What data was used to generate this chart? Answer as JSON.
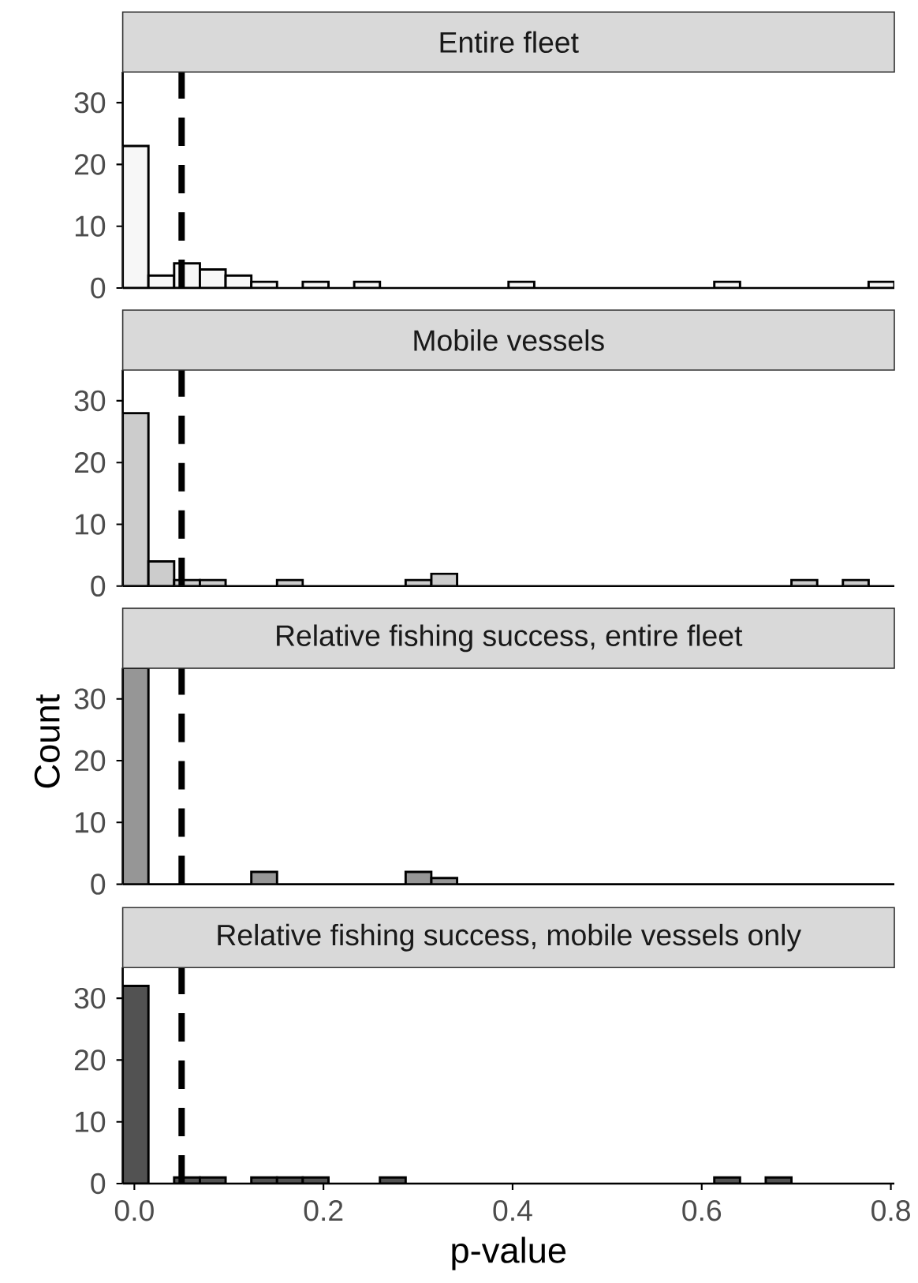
{
  "chart_data": [
    {
      "type": "histogram",
      "title": "Entire fleet",
      "color": "#f7f7f7",
      "bins": [
        -0.0123,
        0.0149,
        0.0421,
        0.0693,
        0.0965,
        0.1237,
        0.1509,
        0.1781,
        0.2053,
        0.2325,
        0.2597,
        0.2869,
        0.3141,
        0.3413,
        0.3685,
        0.3957,
        0.4229,
        0.4501,
        0.4773,
        0.5045,
        0.5317,
        0.5589,
        0.5861,
        0.6133,
        0.6405,
        0.6677,
        0.6949,
        0.7221,
        0.7493,
        0.7765,
        0.8037
      ],
      "values": [
        23,
        2,
        4,
        3,
        2,
        1,
        0,
        1,
        0,
        1,
        0,
        0,
        0,
        0,
        0,
        1,
        0,
        0,
        0,
        0,
        0,
        0,
        0,
        1,
        0,
        0,
        0,
        0,
        0,
        1
      ],
      "xlim": [
        -0.0123,
        0.8037
      ],
      "ylim": [
        0,
        35
      ],
      "yticks": [
        0,
        10,
        20,
        30
      ],
      "tick_labels": "y",
      "grid": false,
      "ref_lines": [
        {
          "axis": "x",
          "value": 0.05,
          "color": "#000000",
          "line_style": "dashed"
        }
      ]
    },
    {
      "type": "histogram",
      "title": "Mobile vessels",
      "color": "#cccccc",
      "ylabel": "Count",
      "bins": [
        -0.0123,
        0.0149,
        0.0421,
        0.0693,
        0.0965,
        0.1237,
        0.1509,
        0.1781,
        0.2053,
        0.2325,
        0.2597,
        0.2869,
        0.3141,
        0.3413,
        0.3685,
        0.3957,
        0.4229,
        0.4501,
        0.4773,
        0.5045,
        0.5317,
        0.5589,
        0.5861,
        0.6133,
        0.6405,
        0.6677,
        0.6949,
        0.7221,
        0.7493,
        0.7765,
        0.8037
      ],
      "values": [
        28,
        4,
        1,
        1,
        0,
        0,
        1,
        0,
        0,
        0,
        0,
        1,
        2,
        0,
        0,
        0,
        0,
        0,
        0,
        0,
        0,
        0,
        0,
        0,
        0,
        0,
        1,
        0,
        1,
        0
      ],
      "xlim": [
        -0.0123,
        0.8037
      ],
      "ylim": [
        0,
        35
      ],
      "yticks": [
        0,
        10,
        20,
        30
      ],
      "tick_labels": "y",
      "grid": false,
      "ref_lines": [
        {
          "axis": "x",
          "value": 0.05,
          "color": "#000000",
          "line_style": "dashed"
        }
      ]
    },
    {
      "type": "histogram",
      "title": "Relative fishing success, entire fleet",
      "color": "#969696",
      "bins": [
        -0.0123,
        0.0149,
        0.0421,
        0.0693,
        0.0965,
        0.1237,
        0.1509,
        0.1781,
        0.2053,
        0.2325,
        0.2597,
        0.2869,
        0.3141,
        0.3413,
        0.3685,
        0.3957,
        0.4229,
        0.4501,
        0.4773,
        0.5045,
        0.5317,
        0.5589,
        0.5861,
        0.6133,
        0.6405,
        0.6677,
        0.6949,
        0.7221,
        0.7493,
        0.7765,
        0.8037
      ],
      "values": [
        35,
        0,
        0,
        0,
        0,
        2,
        0,
        0,
        0,
        0,
        0,
        2,
        1,
        0,
        0,
        0,
        0,
        0,
        0,
        0,
        0,
        0,
        0,
        0,
        0,
        0,
        0,
        0,
        0,
        0
      ],
      "xlim": [
        -0.0123,
        0.8037
      ],
      "ylim": [
        0,
        35
      ],
      "yticks": [
        0,
        10,
        20,
        30
      ],
      "tick_labels": "y",
      "grid": false,
      "ref_lines": [
        {
          "axis": "x",
          "value": 0.05,
          "color": "#000000",
          "line_style": "dashed"
        }
      ]
    },
    {
      "type": "histogram",
      "title": "Relative fishing success, mobile vessels only",
      "color": "#525252",
      "xlabel": "p-value",
      "bins": [
        -0.0123,
        0.0149,
        0.0421,
        0.0693,
        0.0965,
        0.1237,
        0.1509,
        0.1781,
        0.2053,
        0.2325,
        0.2597,
        0.2869,
        0.3141,
        0.3413,
        0.3685,
        0.3957,
        0.4229,
        0.4501,
        0.4773,
        0.5045,
        0.5317,
        0.5589,
        0.5861,
        0.6133,
        0.6405,
        0.6677,
        0.6949,
        0.7221,
        0.7493,
        0.7765,
        0.8037
      ],
      "values": [
        32,
        0,
        1,
        1,
        0,
        1,
        1,
        1,
        0,
        0,
        1,
        0,
        0,
        0,
        0,
        0,
        0,
        0,
        0,
        0,
        0,
        0,
        0,
        1,
        0,
        1,
        0,
        0,
        0,
        0
      ],
      "xlim": [
        -0.0123,
        0.8037
      ],
      "ylim": [
        0,
        35
      ],
      "yticks": [
        0,
        10,
        20,
        30
      ],
      "grid": false,
      "xticks": [
        {
          "value": 0,
          "label": "0.0"
        },
        {
          "value": 0.2,
          "label": "0.2"
        },
        {
          "value": 0.4,
          "label": "0.4"
        },
        {
          "value": 0.6,
          "label": "0.6"
        },
        {
          "value": 0.8,
          "label": "0.8"
        }
      ],
      "ref_lines": [
        {
          "axis": "x",
          "value": 0.05,
          "color": "#000000",
          "line_style": "dashed"
        }
      ]
    }
  ]
}
